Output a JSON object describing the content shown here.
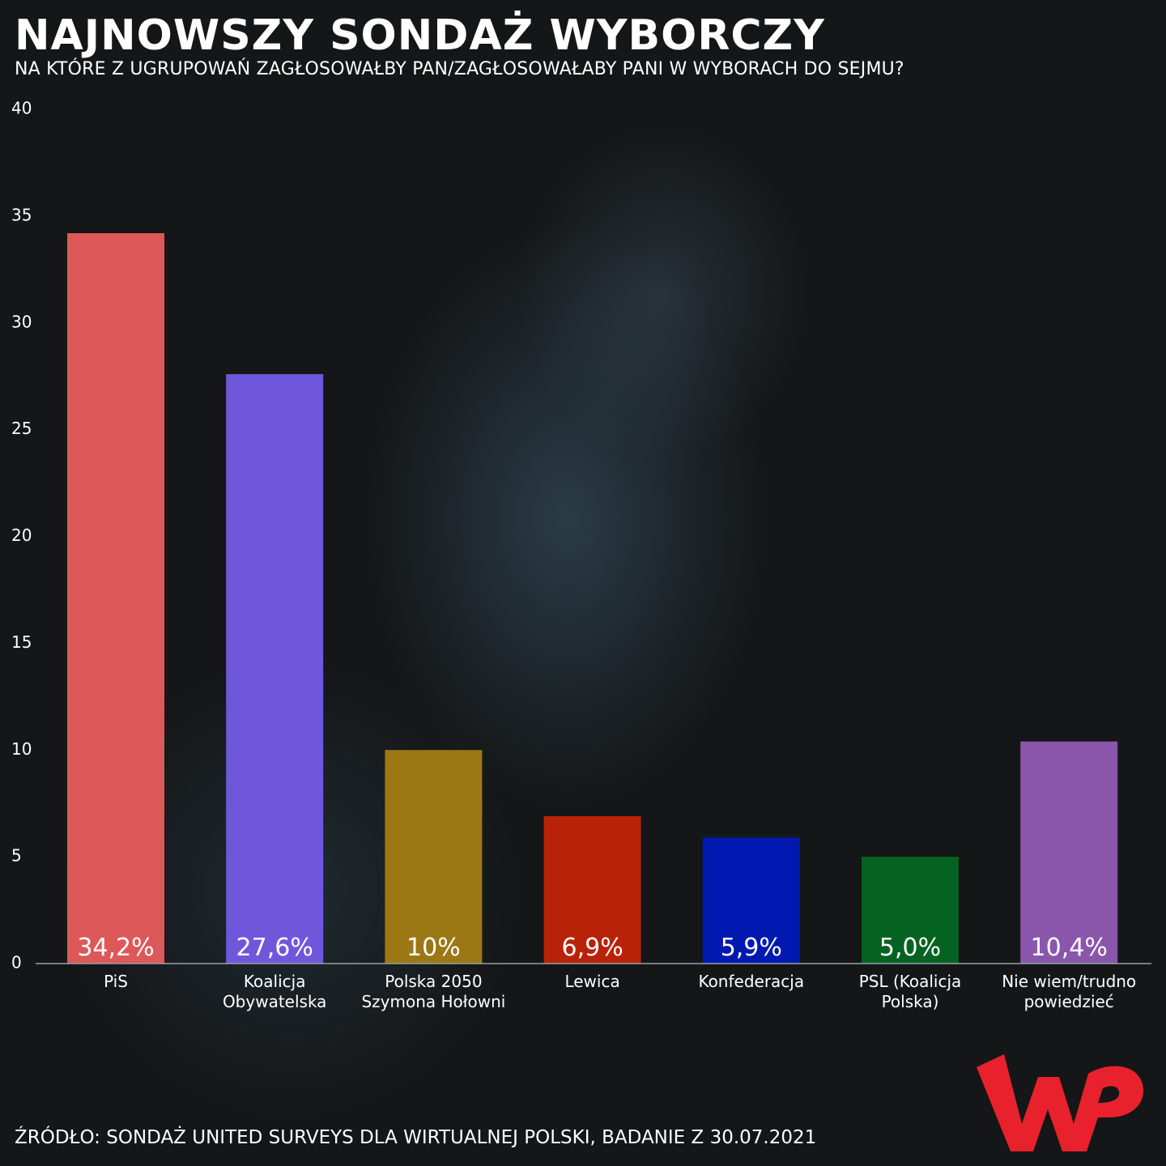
{
  "chart_data": {
    "type": "bar",
    "title": "NAJNOWSZY SONDAŻ WYBORCZY",
    "subtitle": "NA KTÓRE Z UGRUPOWAŃ ZAGŁOSOWAŁBY PAN/ZAGŁOSOWAŁABY PANI W WYBORACH DO SEJMU?",
    "xlabel": "",
    "ylabel": "",
    "ylim": [
      0,
      40
    ],
    "yticks": [
      "0",
      "5",
      "10",
      "15",
      "20",
      "25",
      "30",
      "35",
      "40"
    ],
    "grid": false,
    "categories": [
      [
        "PiS"
      ],
      [
        "Koalicja",
        "Obywatelska"
      ],
      [
        "Polska 2050",
        "Szymona Hołowni"
      ],
      [
        "Lewica"
      ],
      [
        "Konfederacja"
      ],
      [
        "PSL (Koalicja",
        "Polska)"
      ],
      [
        "Nie wiem/trudno",
        "powiedzieć"
      ]
    ],
    "values": [
      34.2,
      27.6,
      10,
      6.9,
      5.9,
      5.0,
      10.4
    ],
    "data_labels": [
      "34,2%",
      "27,6%",
      "10%",
      "6,9%",
      "5,9%",
      "5,0%",
      "10,4%"
    ],
    "colors": [
      "#dd5858",
      "#6f57dc",
      "#9b7814",
      "#b82206",
      "#0119b1",
      "#056321",
      "#8a56ab"
    ]
  },
  "source": "ŹRÓDŁO: SONDAŻ UNITED SURVEYS DLA WIRTUALNEJ POLSKI, BADANIE Z 30.07.2021",
  "logo": {
    "icon": "wp-logo-icon",
    "color": "#e8212d"
  }
}
